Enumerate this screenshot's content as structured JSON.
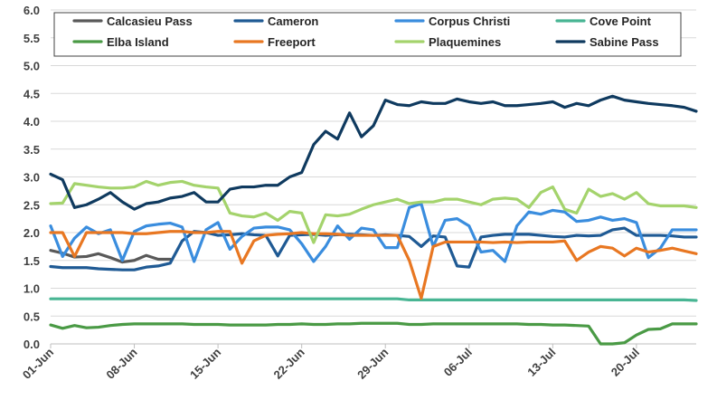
{
  "chart_data": {
    "type": "line",
    "title": "",
    "xlabel": "",
    "ylabel": "",
    "ylim": [
      0,
      6
    ],
    "yticks": [
      "0.0",
      "0.5",
      "1.0",
      "1.5",
      "2.0",
      "2.5",
      "3.0",
      "3.5",
      "4.0",
      "4.5",
      "5.0",
      "5.5",
      "6.0"
    ],
    "x_count": 55,
    "x_ticks": [
      {
        "index": 0,
        "label": "01-Jun"
      },
      {
        "index": 7,
        "label": "08-Jun"
      },
      {
        "index": 14,
        "label": "15-Jun"
      },
      {
        "index": 21,
        "label": "22-Jun"
      },
      {
        "index": 28,
        "label": "29-Jun"
      },
      {
        "index": 35,
        "label": "06-Jul"
      },
      {
        "index": 42,
        "label": "13-Jul"
      },
      {
        "index": 49,
        "label": "20-Jul"
      }
    ],
    "legend_position": "top",
    "series": [
      {
        "name": "Calcasieu Pass",
        "color": "#595959",
        "values": [
          1.68,
          1.63,
          1.56,
          1.57,
          1.62,
          1.55,
          1.47,
          1.5,
          1.59,
          1.52,
          1.52
        ]
      },
      {
        "name": "Cameron",
        "color": "#1f5a94",
        "values": [
          1.39,
          1.37,
          1.37,
          1.37,
          1.35,
          1.34,
          1.33,
          1.33,
          1.38,
          1.4,
          1.45,
          1.85,
          2.02,
          2.0,
          1.95,
          1.96,
          1.98,
          1.96,
          1.95,
          1.58,
          1.95,
          1.96,
          1.97,
          1.95,
          1.96,
          1.97,
          1.96,
          1.95,
          1.96,
          1.95,
          1.93,
          1.75,
          1.94,
          1.92,
          1.4,
          1.38,
          1.92,
          1.95,
          1.97,
          1.97,
          1.97,
          1.95,
          1.93,
          1.92,
          1.95,
          1.94,
          1.95,
          2.05,
          2.08,
          1.95,
          1.95,
          1.95,
          1.94,
          1.92,
          1.92
        ]
      },
      {
        "name": "Corpus Christi",
        "color": "#3a8dde",
        "values": [
          2.12,
          1.57,
          1.9,
          2.1,
          1.98,
          2.05,
          1.5,
          2.02,
          2.12,
          2.15,
          2.17,
          2.1,
          1.48,
          2.05,
          2.18,
          1.7,
          1.93,
          2.08,
          2.1,
          2.1,
          2.05,
          1.8,
          1.48,
          1.75,
          2.12,
          1.88,
          2.08,
          2.05,
          1.73,
          1.73,
          2.45,
          2.52,
          1.75,
          2.22,
          2.25,
          2.12,
          1.65,
          1.68,
          1.48,
          2.12,
          2.37,
          2.33,
          2.4,
          2.37,
          2.2,
          2.22,
          2.28,
          2.22,
          2.25,
          2.18,
          1.55,
          1.72,
          2.05,
          2.05,
          2.05
        ]
      },
      {
        "name": "Cove Point",
        "color": "#48b593",
        "values": [
          0.81,
          0.81,
          0.81,
          0.81,
          0.81,
          0.81,
          0.81,
          0.81,
          0.81,
          0.81,
          0.81,
          0.81,
          0.81,
          0.81,
          0.81,
          0.81,
          0.81,
          0.81,
          0.81,
          0.81,
          0.81,
          0.81,
          0.81,
          0.81,
          0.81,
          0.81,
          0.81,
          0.81,
          0.81,
          0.81,
          0.79,
          0.79,
          0.79,
          0.79,
          0.79,
          0.79,
          0.79,
          0.79,
          0.79,
          0.79,
          0.79,
          0.79,
          0.79,
          0.79,
          0.79,
          0.79,
          0.79,
          0.79,
          0.79,
          0.79,
          0.79,
          0.79,
          0.79,
          0.79,
          0.78
        ]
      },
      {
        "name": "Elba Island",
        "color": "#4a9a45",
        "values": [
          0.34,
          0.28,
          0.33,
          0.29,
          0.3,
          0.33,
          0.35,
          0.36,
          0.36,
          0.36,
          0.36,
          0.36,
          0.35,
          0.35,
          0.35,
          0.34,
          0.34,
          0.34,
          0.34,
          0.35,
          0.35,
          0.36,
          0.35,
          0.35,
          0.36,
          0.36,
          0.37,
          0.37,
          0.37,
          0.37,
          0.35,
          0.35,
          0.36,
          0.36,
          0.36,
          0.36,
          0.36,
          0.36,
          0.36,
          0.36,
          0.35,
          0.35,
          0.34,
          0.34,
          0.33,
          0.32,
          0.0,
          0.0,
          0.02,
          0.16,
          0.26,
          0.27,
          0.36,
          0.36,
          0.36
        ]
      },
      {
        "name": "Freeport",
        "color": "#e87722",
        "values": [
          2.0,
          2.0,
          1.57,
          2.0,
          2.0,
          2.0,
          2.0,
          1.98,
          1.98,
          2.0,
          2.02,
          2.02,
          2.0,
          2.0,
          2.02,
          2.02,
          1.45,
          1.85,
          1.95,
          1.97,
          1.98,
          2.0,
          1.98,
          1.98,
          1.97,
          1.95,
          1.95,
          1.95,
          1.95,
          1.95,
          1.5,
          0.82,
          1.75,
          1.83,
          1.83,
          1.83,
          1.83,
          1.82,
          1.83,
          1.82,
          1.83,
          1.83,
          1.83,
          1.85,
          1.5,
          1.65,
          1.75,
          1.72,
          1.58,
          1.72,
          1.65,
          1.68,
          1.72,
          1.67,
          1.62
        ]
      },
      {
        "name": "Plaquemines",
        "color": "#a4d36c",
        "values": [
          2.52,
          2.53,
          2.88,
          2.85,
          2.82,
          2.8,
          2.8,
          2.82,
          2.92,
          2.85,
          2.9,
          2.92,
          2.85,
          2.82,
          2.8,
          2.35,
          2.3,
          2.28,
          2.35,
          2.22,
          2.38,
          2.35,
          1.82,
          2.32,
          2.3,
          2.33,
          2.42,
          2.5,
          2.55,
          2.6,
          2.52,
          2.55,
          2.55,
          2.6,
          2.6,
          2.55,
          2.5,
          2.6,
          2.62,
          2.6,
          2.45,
          2.72,
          2.82,
          2.42,
          2.35,
          2.78,
          2.65,
          2.7,
          2.6,
          2.72,
          2.52,
          2.48,
          2.48,
          2.48,
          2.45
        ]
      },
      {
        "name": "Sabine Pass",
        "color": "#0f3a5f",
        "values": [
          3.05,
          2.95,
          2.45,
          2.5,
          2.6,
          2.72,
          2.55,
          2.42,
          2.52,
          2.55,
          2.62,
          2.65,
          2.72,
          2.55,
          2.55,
          2.78,
          2.82,
          2.82,
          2.85,
          2.85,
          3.0,
          3.08,
          3.58,
          3.82,
          3.68,
          4.15,
          3.72,
          3.92,
          4.38,
          4.3,
          4.28,
          4.35,
          4.32,
          4.32,
          4.4,
          4.35,
          4.32,
          4.35,
          4.28,
          4.28,
          4.3,
          4.32,
          4.35,
          4.25,
          4.32,
          4.28,
          4.38,
          4.45,
          4.38,
          4.35,
          4.32,
          4.3,
          4.28,
          4.25,
          4.18
        ]
      }
    ]
  }
}
